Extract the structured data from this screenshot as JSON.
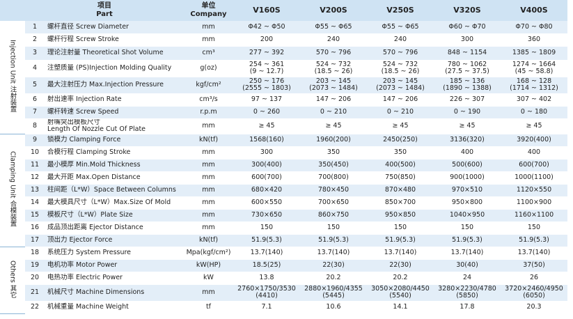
{
  "header": {
    "item_cn": "项目",
    "item_en": "Part",
    "unit_cn": "单位",
    "unit_en": "Company",
    "models": [
      "V160S",
      "V200S",
      "V250S",
      "V320S",
      "V400S"
    ]
  },
  "groups": [
    {
      "label": "Injection Unit 注射装置",
      "rows": 8
    },
    {
      "label": "Clamping Unit 合模装置",
      "rows": 9
    },
    {
      "label": "Others 其它",
      "rows": 5
    }
  ],
  "rows": [
    {
      "no": "1",
      "item": [
        "螺杆直径 Screw Diameter"
      ],
      "unit": "mm",
      "values": [
        [
          "Φ42 ~ Φ50"
        ],
        [
          "Φ55 ~ Φ65"
        ],
        [
          "Φ55 ~ Φ65"
        ],
        [
          "Φ60 ~ Φ70"
        ],
        [
          "Φ70 ~ Φ80"
        ]
      ]
    },
    {
      "no": "2",
      "item": [
        "螺杆行程 Screw Stroke"
      ],
      "unit": "mm",
      "values": [
        [
          "200"
        ],
        [
          "240"
        ],
        [
          "240"
        ],
        [
          "300"
        ],
        [
          "360"
        ]
      ]
    },
    {
      "no": "3",
      "item": [
        "理论注射量 Theoretical Shot Volume"
      ],
      "unit": "cm³",
      "values": [
        [
          "277 ~ 392"
        ],
        [
          "570 ~ 796"
        ],
        [
          "570 ~ 796"
        ],
        [
          "848 ~ 1154"
        ],
        [
          "1385 ~ 1809"
        ]
      ]
    },
    {
      "no": "4",
      "item": [
        "注塑质量 (PS)Injection Molding Quality"
      ],
      "unit": "g(oz)",
      "values": [
        [
          "254 ~ 361",
          "(9 ~ 12.7)"
        ],
        [
          "524 ~ 732",
          "(18.5 ~ 26)"
        ],
        [
          "524 ~ 732",
          "(18.5 ~ 26)"
        ],
        [
          "780 ~ 1062",
          "(27.5 ~ 37.5)"
        ],
        [
          "1274 ~ 1664",
          "(45 ~ 58.8)"
        ]
      ]
    },
    {
      "no": "5",
      "item": [
        "最大注射压力 Max.Injection Pressure"
      ],
      "unit": "kgf/cm²",
      "values": [
        [
          "250 ~ 176",
          "(2555 ~ 1803)"
        ],
        [
          "203 ~ 145",
          "(2073 ~ 1484)"
        ],
        [
          "203 ~ 145",
          "(2073 ~ 1484)"
        ],
        [
          "185 ~ 136",
          "(1890 ~ 1388)"
        ],
        [
          "168 ~ 128",
          "(1714 ~ 1312)"
        ]
      ]
    },
    {
      "no": "6",
      "item": [
        "射出速率 Injection Rate"
      ],
      "unit": "cm³/s",
      "values": [
        [
          "97 ~ 137"
        ],
        [
          "147 ~ 206"
        ],
        [
          "147 ~ 206"
        ],
        [
          "226 ~ 307"
        ],
        [
          "307 ~ 402"
        ]
      ]
    },
    {
      "no": "7",
      "item": [
        "螺杆转速 Screw Speed"
      ],
      "unit": "r.p.m",
      "values": [
        [
          "0 ~ 260"
        ],
        [
          "0 ~ 210"
        ],
        [
          "0 ~ 210"
        ],
        [
          "0 ~ 190"
        ],
        [
          "0 ~ 180"
        ]
      ]
    },
    {
      "no": "8",
      "item": [
        "射嘴突出模板尺寸",
        "Length Of Nozzle Cut Of Plate"
      ],
      "unit": "mm",
      "values": [
        [
          "≥ 45"
        ],
        [
          "≥ 45"
        ],
        [
          "≥ 45"
        ],
        [
          "≥ 45"
        ],
        [
          "≥ 45"
        ]
      ]
    },
    {
      "no": "9",
      "item": [
        "锁模力 Clamping Force"
      ],
      "unit": "kN(tf)",
      "values": [
        [
          "1568(160)"
        ],
        [
          "1960(200)"
        ],
        [
          "2450(250)"
        ],
        [
          "3136(320)"
        ],
        [
          "3920(400)"
        ]
      ]
    },
    {
      "no": "10",
      "item": [
        "合模行程 Clamping Stroke"
      ],
      "unit": "mm",
      "values": [
        [
          "300"
        ],
        [
          "350"
        ],
        [
          "350"
        ],
        [
          "400"
        ],
        [
          "400"
        ]
      ]
    },
    {
      "no": "11",
      "item": [
        "最小模厚 Min.Mold Thickness"
      ],
      "unit": "mm",
      "values": [
        [
          "300(400)"
        ],
        [
          "350(450)"
        ],
        [
          "400(500)"
        ],
        [
          "500(600)"
        ],
        [
          "600(700)"
        ]
      ]
    },
    {
      "no": "12",
      "item": [
        "最大开距 Max.Open Distance"
      ],
      "unit": "mm",
      "values": [
        [
          "600(700)"
        ],
        [
          "700(800)"
        ],
        [
          "750(850)"
        ],
        [
          "900(1000)"
        ],
        [
          "1000(1100)"
        ]
      ]
    },
    {
      "no": "13",
      "item": [
        "柱间距（L*W）Space Between Columns"
      ],
      "unit": "mm",
      "values": [
        [
          "680×420"
        ],
        [
          "780×450"
        ],
        [
          "870×480"
        ],
        [
          "970×510"
        ],
        [
          "1120×550"
        ]
      ]
    },
    {
      "no": "14",
      "item": [
        "最大模具尺寸（L*W）Max.Size Of Mold"
      ],
      "unit": "mm",
      "values": [
        [
          "600×550"
        ],
        [
          "700×650"
        ],
        [
          "850×700"
        ],
        [
          "950×800"
        ],
        [
          "1100×900"
        ]
      ]
    },
    {
      "no": "15",
      "item": [
        "模板尺寸（L*W）Plate Size"
      ],
      "unit": "mm",
      "values": [
        [
          "730×650"
        ],
        [
          "860×750"
        ],
        [
          "950×850"
        ],
        [
          "1040×950"
        ],
        [
          "1160×1100"
        ]
      ]
    },
    {
      "no": "16",
      "item": [
        "成品顶出距离 Ejector Distance"
      ],
      "unit": "mm",
      "values": [
        [
          "150"
        ],
        [
          "150"
        ],
        [
          "150"
        ],
        [
          "150"
        ],
        [
          "150"
        ]
      ]
    },
    {
      "no": "17",
      "item": [
        "顶出力 Ejector Force"
      ],
      "unit": "kN(tf)",
      "values": [
        [
          "51.9(5.3)"
        ],
        [
          "51.9(5.3)"
        ],
        [
          "51.9(5.3)"
        ],
        [
          "51.9(5.3)"
        ],
        [
          "51.9(5.3)"
        ]
      ]
    },
    {
      "no": "18",
      "item": [
        "系统压力 System Pressure"
      ],
      "unit": "Mpa(kgf/cm²)",
      "values": [
        [
          "13.7(140)"
        ],
        [
          "13.7(140)"
        ],
        [
          "13.7(140)"
        ],
        [
          "13.7(140)"
        ],
        [
          "13.7(140)"
        ]
      ]
    },
    {
      "no": "19",
      "item": [
        "电机功率 Motor Power"
      ],
      "unit": "kW(HP)",
      "values": [
        [
          "18.5(25)"
        ],
        [
          "22(30)"
        ],
        [
          "22(30)"
        ],
        [
          "30(40)"
        ],
        [
          "37(50)"
        ]
      ]
    },
    {
      "no": "20",
      "item": [
        "电热功率 Electric Power"
      ],
      "unit": "kW",
      "values": [
        [
          "13.8"
        ],
        [
          "20.2"
        ],
        [
          "20.2"
        ],
        [
          "24"
        ],
        [
          "26"
        ]
      ]
    },
    {
      "no": "21",
      "item": [
        "机械尺寸 Machine Dimensions"
      ],
      "unit": "mm",
      "values": [
        [
          "2760×1750/3530",
          "(4410)"
        ],
        [
          "2880×1960/4355",
          "(5445)"
        ],
        [
          "3050×2080/4450",
          "(5540)"
        ],
        [
          "3280×2230/4780",
          "(5850)"
        ],
        [
          "3720×2460/4950",
          "(6050)"
        ]
      ]
    },
    {
      "no": "22",
      "item": [
        "机械重量 Machine Weight"
      ],
      "unit": "tf",
      "values": [
        [
          "7.1"
        ],
        [
          "10.6"
        ],
        [
          "14.1"
        ],
        [
          "17.8"
        ],
        [
          "20.3"
        ]
      ]
    }
  ]
}
